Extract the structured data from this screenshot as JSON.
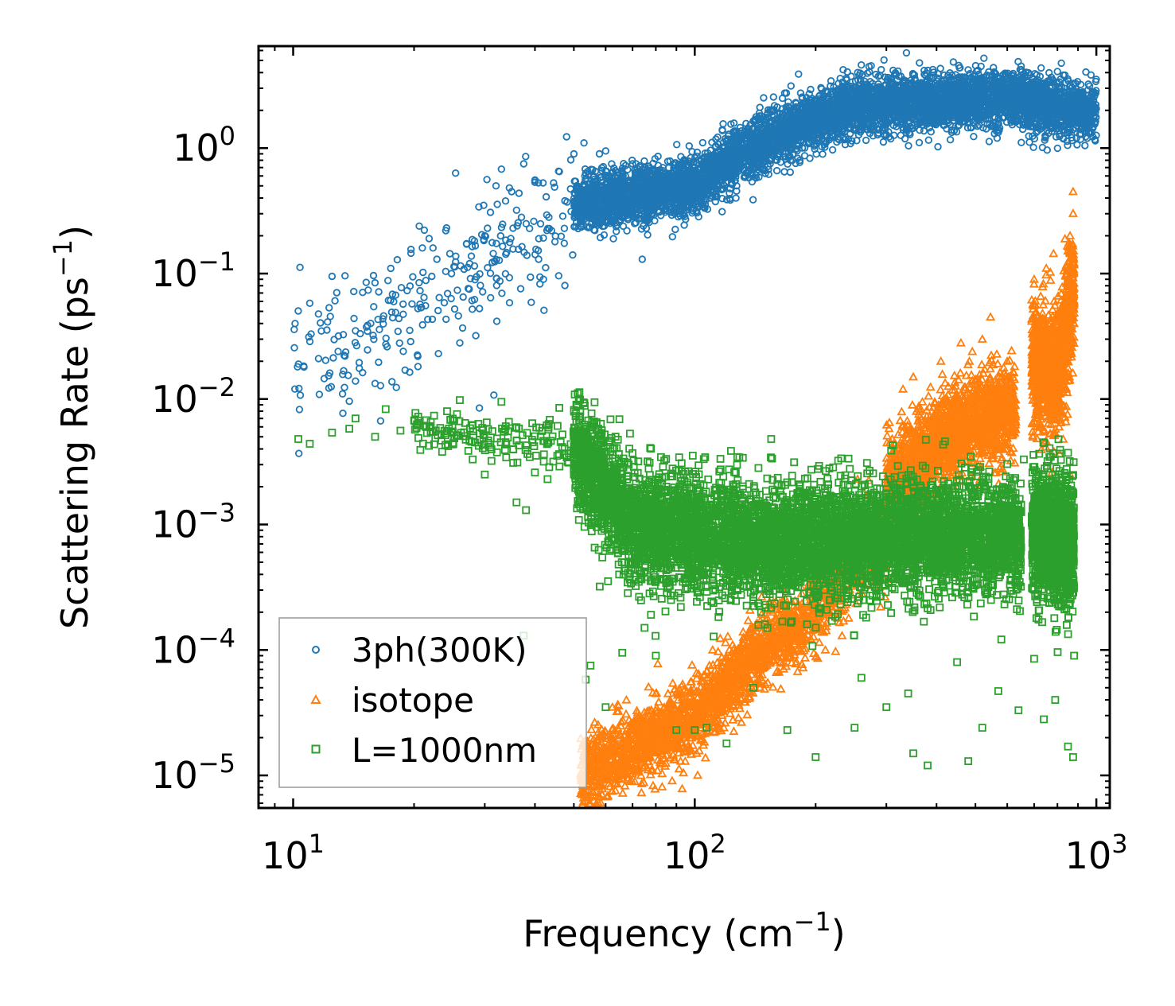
{
  "chart_data": {
    "type": "scatter",
    "title": "",
    "xlabel": "Frequency (cm",
    "xlabel_exp": "−1",
    "xlabel_end": ")",
    "ylabel": "Scattering Rate (ps",
    "ylabel_exp": "−1",
    "ylabel_end": ")",
    "xscale": "log",
    "yscale": "log",
    "xlim": [
      8.2,
      1080
    ],
    "ylim": [
      5.5e-06,
      6.5
    ],
    "x_ticks": [
      {
        "base": "10",
        "exp": "1",
        "value": 10
      },
      {
        "base": "10",
        "exp": "2",
        "value": 100
      },
      {
        "base": "10",
        "exp": "3",
        "value": 1000
      }
    ],
    "y_ticks": [
      {
        "base": "10",
        "exp": "0",
        "value": 1
      },
      {
        "base": "10",
        "exp": "−1",
        "value": 0.1
      },
      {
        "base": "10",
        "exp": "−2",
        "value": 0.01
      },
      {
        "base": "10",
        "exp": "−3",
        "value": 0.001
      },
      {
        "base": "10",
        "exp": "−4",
        "value": 0.0001
      },
      {
        "base": "10",
        "exp": "−5",
        "value": 1e-05
      }
    ],
    "legend_position": "bottom-left",
    "series": [
      {
        "name": "3ph(300K)",
        "marker": "circle",
        "color": "#1f77b4",
        "generated_density": [
          {
            "x_range": [
              10,
              50
            ],
            "center_points": [
              [
                10,
                0.02
              ],
              [
                50,
                0.3
              ]
            ],
            "spread_decades": 0.55,
            "n": 260
          },
          {
            "x_range": [
              50,
              1000
            ],
            "center_points": [
              [
                50,
                0.35
              ],
              [
                100,
                0.5
              ],
              [
                150,
                1.2
              ],
              [
                250,
                2.2
              ],
              [
                600,
                2.5
              ],
              [
                880,
                2.0
              ]
            ],
            "spread_decades": 0.22,
            "n": 6000
          }
        ],
        "points": [
          [
            10.4,
            0.112
          ],
          [
            11,
            0.058
          ],
          [
            12.5,
            0.095
          ],
          [
            13.3,
            0.0077
          ],
          [
            13.8,
            0.0096
          ],
          [
            14.3,
            0.035
          ],
          [
            14.6,
            0.0195
          ],
          [
            15.2,
            0.085
          ],
          [
            16,
            0.0133
          ],
          [
            16.8,
            0.046
          ],
          [
            17.5,
            0.11
          ],
          [
            18.8,
            0.024
          ],
          [
            19,
            0.017
          ],
          [
            20.7,
            0.057
          ],
          [
            21,
            0.039
          ],
          [
            21.8,
            0.19
          ],
          [
            22.3,
            0.16
          ],
          [
            22.8,
            0.13
          ],
          [
            23,
            0.023
          ],
          [
            24,
            0.22
          ],
          [
            24.8,
            0.1
          ],
          [
            26,
            0.028
          ],
          [
            26.5,
            0.065
          ],
          [
            27.5,
            0.12
          ],
          [
            28.5,
            0.032
          ],
          [
            29,
            0.34
          ],
          [
            30,
            0.2
          ],
          [
            32,
            0.5
          ],
          [
            33,
            0.68
          ],
          [
            35,
            0.45
          ],
          [
            36,
            0.32
          ],
          [
            37.5,
            0.75
          ],
          [
            38.2,
            0.14
          ],
          [
            40,
            0.55
          ],
          [
            42,
            0.09
          ],
          [
            44,
            0.22
          ],
          [
            46,
            0.65
          ],
          [
            47.5,
            0.38
          ],
          [
            50,
            0.9
          ],
          [
            53,
            1.1
          ],
          [
            56,
            0.6
          ],
          [
            60,
            0.95
          ],
          [
            66,
            0.55
          ],
          [
            70,
            0.75
          ],
          [
            74,
            0.13
          ],
          [
            88,
            0.42
          ],
          [
            105,
            0.7
          ],
          [
            140,
            1.45
          ],
          [
            190,
            2.1
          ],
          [
            255,
            3.5
          ],
          [
            330,
            2.5
          ],
          [
            420,
            2.8
          ],
          [
            550,
            3.5
          ],
          [
            600,
            2.9
          ],
          [
            740,
            3.3
          ],
          [
            850,
            2.5
          ],
          [
            870,
            1.15
          ]
        ]
      },
      {
        "name": "isotope",
        "marker": "triangle",
        "color": "#ff7f0e",
        "generated_density": [
          {
            "x_range": [
              52,
              180
            ],
            "center_points": [
              [
                55,
                1.1e-05
              ],
              [
                100,
                3e-05
              ],
              [
                170,
                0.00015
              ]
            ],
            "spread_decades": 0.3,
            "n": 1800
          },
          {
            "x_range": [
              180,
              300
            ],
            "center_points": [
              [
                180,
                0.00015
              ],
              [
                280,
                0.0007
              ]
            ],
            "spread_decades": 0.35,
            "n": 500
          },
          {
            "x_range": [
              300,
              630
            ],
            "center_points": [
              [
                300,
                0.002
              ],
              [
                450,
                0.006
              ],
              [
                620,
                0.008
              ]
            ],
            "spread_decades": 0.35,
            "n": 1800
          },
          {
            "x_range": [
              690,
              880
            ],
            "center_points": [
              [
                700,
                0.02
              ],
              [
                800,
                0.015
              ],
              [
                880,
                0.08
              ]
            ],
            "spread_decades": 0.5,
            "n": 1200
          }
        ],
        "points": [
          [
            52,
            1.04e-05
          ],
          [
            55,
            1.08e-05
          ],
          [
            62,
            1.5e-05
          ],
          [
            70,
            2.5e-05
          ],
          [
            90,
            3e-05
          ],
          [
            110,
            5.2e-05
          ],
          [
            130,
            9e-05
          ],
          [
            160,
            0.00014
          ],
          [
            180,
            0.0002
          ],
          [
            200,
            0.00025
          ],
          [
            320,
            0.0018
          ],
          [
            330,
            0.012
          ],
          [
            350,
            0.015
          ],
          [
            410,
            0.02
          ],
          [
            460,
            0.028
          ],
          [
            520,
            0.03
          ],
          [
            545,
            0.045
          ],
          [
            580,
            0.015
          ],
          [
            600,
            0.02
          ],
          [
            620,
            0.007
          ],
          [
            700,
            0.09
          ],
          [
            750,
            0.035
          ],
          [
            800,
            0.01
          ],
          [
            860,
            0.2
          ],
          [
            875,
            0.45
          ],
          [
            880,
            0.04
          ],
          [
            860,
            0.0025
          ],
          [
            720,
            0.006
          ]
        ]
      },
      {
        "name": "L=1000nm",
        "marker": "square",
        "color": "#2ca02c",
        "generated_density": [
          {
            "x_range": [
              20,
              50
            ],
            "center_points": [
              [
                20,
                0.006
              ],
              [
                50,
                0.004
              ]
            ],
            "spread_decades": 0.18,
            "n": 160
          },
          {
            "x_range": [
              50,
              650
            ],
            "center_points": [
              [
                50,
                0.004
              ],
              [
                70,
                0.001
              ],
              [
                150,
                0.0007
              ],
              [
                300,
                0.0008
              ],
              [
                650,
                0.0008
              ]
            ],
            "spread_decades": 0.45,
            "n": 6500
          },
          {
            "x_range": [
              690,
              880
            ],
            "center_points": [
              [
                700,
                0.0008
              ],
              [
                880,
                0.0007
              ]
            ],
            "spread_decades": 0.5,
            "n": 1200
          }
        ],
        "points": [
          [
            10.3,
            0.0048
          ],
          [
            11,
            0.0044
          ],
          [
            12.5,
            0.0054
          ],
          [
            13.8,
            0.0058
          ],
          [
            14.3,
            0.007
          ],
          [
            16,
            0.005
          ],
          [
            17,
            0.0083
          ],
          [
            18.5,
            0.0056
          ],
          [
            20.5,
            0.0067
          ],
          [
            22,
            0.0055
          ],
          [
            23.5,
            0.0038
          ],
          [
            26,
            0.0098
          ],
          [
            28,
            0.0033
          ],
          [
            30,
            0.0025
          ],
          [
            33,
            0.0095
          ],
          [
            36,
            0.0015
          ],
          [
            38,
            0.0013
          ],
          [
            40,
            0.0026
          ],
          [
            43,
            0.0023
          ],
          [
            46,
            0.0085
          ],
          [
            50,
            0.0025
          ],
          [
            54,
            0.0042
          ],
          [
            58,
            0.00032
          ],
          [
            60,
            3.5e-05
          ],
          [
            66,
            9.5e-05
          ],
          [
            75,
            0.00015
          ],
          [
            80,
            9e-05
          ],
          [
            90,
            2.3e-05
          ],
          [
            100,
            2.3e-05
          ],
          [
            107,
            2.4e-05
          ],
          [
            120,
            1.8e-05
          ],
          [
            140,
            5e-05
          ],
          [
            155,
            0.0048
          ],
          [
            170,
            2.3e-05
          ],
          [
            200,
            1.4e-05
          ],
          [
            210,
            0.0003
          ],
          [
            250,
            2.4e-05
          ],
          [
            260,
            6e-05
          ],
          [
            300,
            3.5e-05
          ],
          [
            340,
            4.5e-05
          ],
          [
            350,
            1.5e-05
          ],
          [
            380,
            1.2e-05
          ],
          [
            420,
            0.0046
          ],
          [
            450,
            8e-05
          ],
          [
            480,
            1.3e-05
          ],
          [
            520,
            2.4e-05
          ],
          [
            570,
            4.7e-05
          ],
          [
            620,
            0.0018
          ],
          [
            640,
            3.3e-05
          ],
          [
            660,
            0.0033
          ],
          [
            700,
            8.5e-05
          ],
          [
            740,
            2.8e-05
          ],
          [
            790,
            4e-05
          ],
          [
            850,
            1.7e-05
          ],
          [
            875,
            1.4e-05
          ],
          [
            880,
            9e-05
          ],
          [
            860,
            0.0004
          ],
          [
            37.5,
            0.00013
          ],
          [
            53.5,
            5.8e-05
          ],
          [
            55,
            7.5e-05
          ]
        ]
      }
    ]
  }
}
